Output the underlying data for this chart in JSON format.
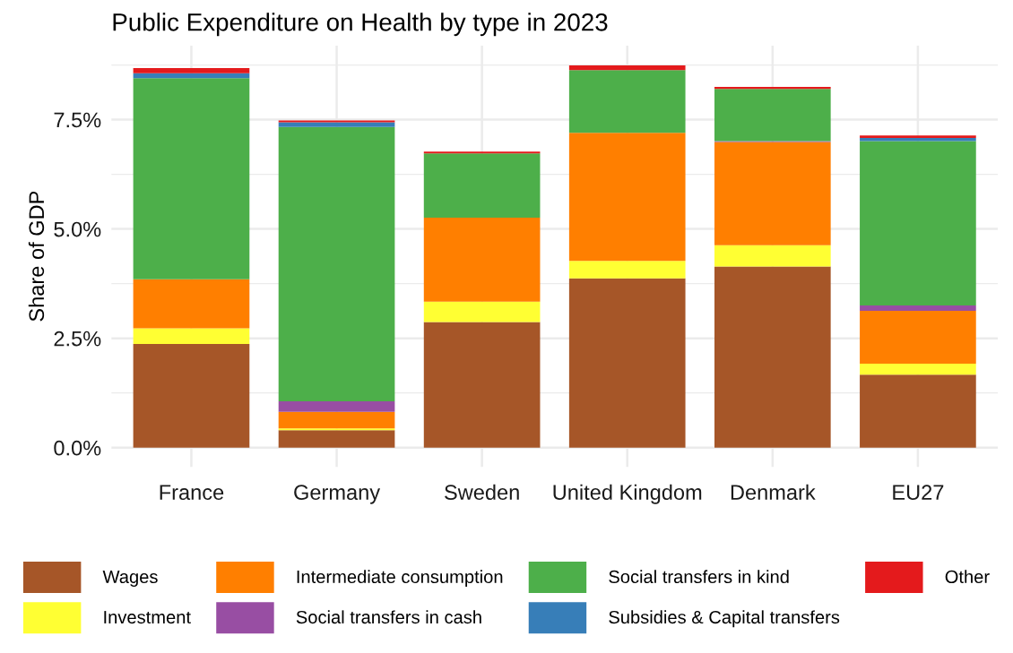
{
  "chart_data": {
    "type": "bar",
    "stacked": true,
    "title": "Public Expenditure on Health by type in 2023",
    "ylabel": "Share of GDP",
    "categories": [
      "France",
      "Germany",
      "Sweden",
      "United Kingdom",
      "Denmark",
      "EU27"
    ],
    "series": [
      {
        "name": "Wages",
        "color": "#a65628",
        "values": [
          2.37,
          0.4,
          2.87,
          3.87,
          4.14,
          1.67
        ]
      },
      {
        "name": "Investment",
        "color": "#ffff33",
        "values": [
          0.36,
          0.04,
          0.47,
          0.4,
          0.49,
          0.25
        ]
      },
      {
        "name": "Intermediate consumption",
        "color": "#ff7f00",
        "values": [
          1.12,
          0.38,
          1.92,
          2.93,
          2.36,
          1.21
        ]
      },
      {
        "name": "Social transfers in cash",
        "color": "#984ea3",
        "values": [
          0,
          0.24,
          0,
          0,
          0.02,
          0.12
        ]
      },
      {
        "name": "Social transfers in kind",
        "color": "#4daf4a",
        "values": [
          4.6,
          6.27,
          1.47,
          1.43,
          1.19,
          3.76
        ]
      },
      {
        "name": "Subsidies & Capital transfers",
        "color": "#377eb8",
        "values": [
          0.11,
          0.11,
          null,
          null,
          null,
          0.07
        ]
      },
      {
        "name": "Other",
        "color": "#e41a1c",
        "values": [
          0.12,
          0.04,
          0.04,
          0.11,
          0.05,
          0.06
        ]
      }
    ],
    "ylim": [
      -0.44,
      9.19
    ],
    "yticks": [
      {
        "value": 0,
        "label": "0.0%"
      },
      {
        "value": 2.5,
        "label": "2.5%"
      },
      {
        "value": 5,
        "label": "5.0%"
      },
      {
        "value": 7.5,
        "label": "7.5%"
      }
    ],
    "grid": true,
    "legend": "bottom"
  }
}
